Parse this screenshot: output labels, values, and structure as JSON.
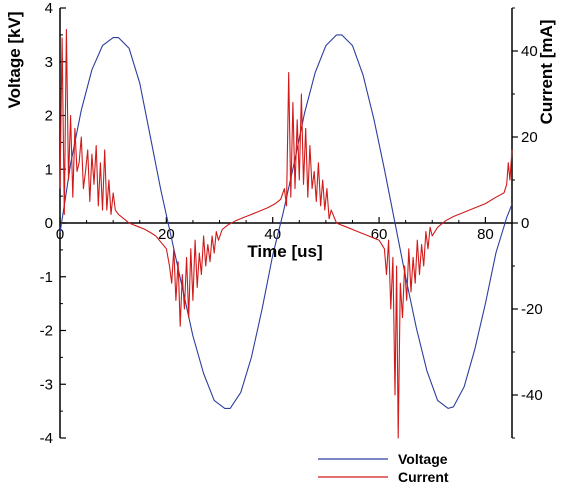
{
  "chart_data": {
    "type": "line",
    "x_label": "Time [us]",
    "y_label_left": "Voltage [kV]",
    "y_label_right": "Current [mA]",
    "xlim": [
      0,
      85
    ],
    "ylim_left": [
      -4,
      4
    ],
    "ylim_right": [
      -50,
      50
    ],
    "x_ticks": [
      "0",
      "20",
      "40",
      "60",
      "80"
    ],
    "y_ticks_left": [
      "-4",
      "-3",
      "-2",
      "-1",
      "0",
      "1",
      "2",
      "3",
      "4"
    ],
    "y_ticks_right": [
      "-40",
      "-20",
      "0",
      "20",
      "40"
    ],
    "grid": false,
    "legend_position": "bottom-right",
    "series": [
      {
        "name": "Voltage",
        "color": "#2c3e9e",
        "axis": "left",
        "points": [
          [
            0,
            -0.18
          ],
          [
            1,
            0.45
          ],
          [
            2,
            1.1
          ],
          [
            4,
            2.1
          ],
          [
            6,
            2.85
          ],
          [
            8,
            3.3
          ],
          [
            10,
            3.45
          ],
          [
            11,
            3.45
          ],
          [
            13,
            3.25
          ],
          [
            15,
            2.6
          ],
          [
            17,
            1.6
          ],
          [
            19,
            0.6
          ],
          [
            21,
            -0.3
          ],
          [
            23,
            -1.2
          ],
          [
            25,
            -2.1
          ],
          [
            27,
            -2.8
          ],
          [
            29,
            -3.3
          ],
          [
            31,
            -3.45
          ],
          [
            32,
            -3.45
          ],
          [
            34,
            -3.15
          ],
          [
            36,
            -2.5
          ],
          [
            38,
            -1.6
          ],
          [
            40,
            -0.6
          ],
          [
            42,
            0.2
          ],
          [
            44,
            1.1
          ],
          [
            46,
            2.05
          ],
          [
            48,
            2.8
          ],
          [
            50,
            3.3
          ],
          [
            52,
            3.5
          ],
          [
            53,
            3.5
          ],
          [
            55,
            3.3
          ],
          [
            57,
            2.75
          ],
          [
            59,
            1.95
          ],
          [
            61,
            1.0
          ],
          [
            63,
            0.0
          ],
          [
            65,
            -1.0
          ],
          [
            67,
            -1.95
          ],
          [
            69,
            -2.75
          ],
          [
            71,
            -3.3
          ],
          [
            73,
            -3.45
          ],
          [
            74,
            -3.42
          ],
          [
            76,
            -3.05
          ],
          [
            78,
            -2.35
          ],
          [
            80,
            -1.5
          ],
          [
            82,
            -0.55
          ],
          [
            84,
            0.1
          ],
          [
            85,
            0.35
          ]
        ]
      },
      {
        "name": "Current",
        "color": "#d11a1a",
        "axis": "right",
        "points": [
          [
            0,
            8
          ],
          [
            0.4,
            43
          ],
          [
            0.8,
            2
          ],
          [
            1.2,
            45
          ],
          [
            1.6,
            10
          ],
          [
            2,
            25
          ],
          [
            2.4,
            6
          ],
          [
            2.8,
            22
          ],
          [
            3.2,
            12
          ],
          [
            3.6,
            14
          ],
          [
            4,
            20
          ],
          [
            4.4,
            8
          ],
          [
            4.8,
            12
          ],
          [
            5.2,
            17
          ],
          [
            5.6,
            5
          ],
          [
            6,
            16
          ],
          [
            6.4,
            9
          ],
          [
            6.8,
            18
          ],
          [
            7.2,
            4
          ],
          [
            7.6,
            14
          ],
          [
            8,
            3
          ],
          [
            8.4,
            17
          ],
          [
            8.8,
            3
          ],
          [
            9.2,
            10
          ],
          [
            9.6,
            2
          ],
          [
            10,
            7
          ],
          [
            10.4,
            3
          ],
          [
            11,
            2
          ],
          [
            12,
            1
          ],
          [
            13,
            0
          ],
          [
            14,
            -0.5
          ],
          [
            15,
            -1
          ],
          [
            16,
            -1.5
          ],
          [
            17,
            -2.2
          ],
          [
            18,
            -3
          ],
          [
            19,
            -4.5
          ],
          [
            20,
            -6
          ],
          [
            20.6,
            -10
          ],
          [
            21,
            -14
          ],
          [
            21.4,
            -6
          ],
          [
            21.8,
            -18
          ],
          [
            22.2,
            -9
          ],
          [
            22.6,
            -24
          ],
          [
            23,
            -12
          ],
          [
            23.4,
            -20
          ],
          [
            23.8,
            -8
          ],
          [
            24.2,
            -22
          ],
          [
            24.6,
            -6
          ],
          [
            25,
            -18
          ],
          [
            25.4,
            -4
          ],
          [
            25.8,
            -15
          ],
          [
            26.2,
            -7
          ],
          [
            26.6,
            -12
          ],
          [
            27,
            -3
          ],
          [
            27.4,
            -10
          ],
          [
            27.8,
            -5
          ],
          [
            28.2,
            -9
          ],
          [
            28.6,
            -3
          ],
          [
            29,
            -7
          ],
          [
            29.4,
            -2
          ],
          [
            29.8,
            -4
          ],
          [
            30.5,
            -1.5
          ],
          [
            31.5,
            -0.5
          ],
          [
            33,
            0.5
          ],
          [
            35,
            1.5
          ],
          [
            37,
            2.5
          ],
          [
            39,
            3.5
          ],
          [
            40.5,
            4.5
          ],
          [
            41.5,
            5.5
          ],
          [
            42.2,
            8
          ],
          [
            42.6,
            4
          ],
          [
            43,
            35
          ],
          [
            43.4,
            6
          ],
          [
            43.8,
            28
          ],
          [
            44.2,
            8
          ],
          [
            44.6,
            24
          ],
          [
            45,
            10
          ],
          [
            45.4,
            30
          ],
          [
            45.8,
            9
          ],
          [
            46.2,
            22
          ],
          [
            46.6,
            6
          ],
          [
            47,
            18
          ],
          [
            47.4,
            8
          ],
          [
            47.8,
            12
          ],
          [
            48.2,
            5
          ],
          [
            48.6,
            14
          ],
          [
            49,
            4
          ],
          [
            49.4,
            10
          ],
          [
            49.8,
            3
          ],
          [
            50.2,
            8
          ],
          [
            50.6,
            1
          ],
          [
            51,
            3
          ],
          [
            52,
            0
          ],
          [
            53,
            -0.5
          ],
          [
            54,
            -1
          ],
          [
            56,
            -2
          ],
          [
            58,
            -3
          ],
          [
            60,
            -4
          ],
          [
            61,
            -6
          ],
          [
            61.4,
            -12
          ],
          [
            61.8,
            -4
          ],
          [
            62.2,
            -20
          ],
          [
            62.6,
            -8
          ],
          [
            63,
            -40
          ],
          [
            63.3,
            -10
          ],
          [
            63.6,
            -50
          ],
          [
            64,
            -14
          ],
          [
            64.4,
            -22
          ],
          [
            64.8,
            -10
          ],
          [
            65.2,
            -18
          ],
          [
            65.6,
            -6
          ],
          [
            66,
            -16
          ],
          [
            66.4,
            -8
          ],
          [
            66.8,
            -14
          ],
          [
            67.2,
            -4
          ],
          [
            67.6,
            -12
          ],
          [
            68,
            -5
          ],
          [
            68.4,
            -10
          ],
          [
            68.8,
            -2
          ],
          [
            69.2,
            -6
          ],
          [
            69.6,
            -1
          ],
          [
            70,
            -3
          ],
          [
            71,
            -1
          ],
          [
            72.5,
            0.5
          ],
          [
            74,
            1.5
          ],
          [
            76,
            2.5
          ],
          [
            78,
            3.5
          ],
          [
            80,
            4.5
          ],
          [
            82,
            6
          ],
          [
            83.5,
            7
          ],
          [
            84,
            9
          ],
          [
            84.3,
            14
          ],
          [
            84.6,
            10
          ],
          [
            85,
            17
          ]
        ]
      }
    ]
  }
}
